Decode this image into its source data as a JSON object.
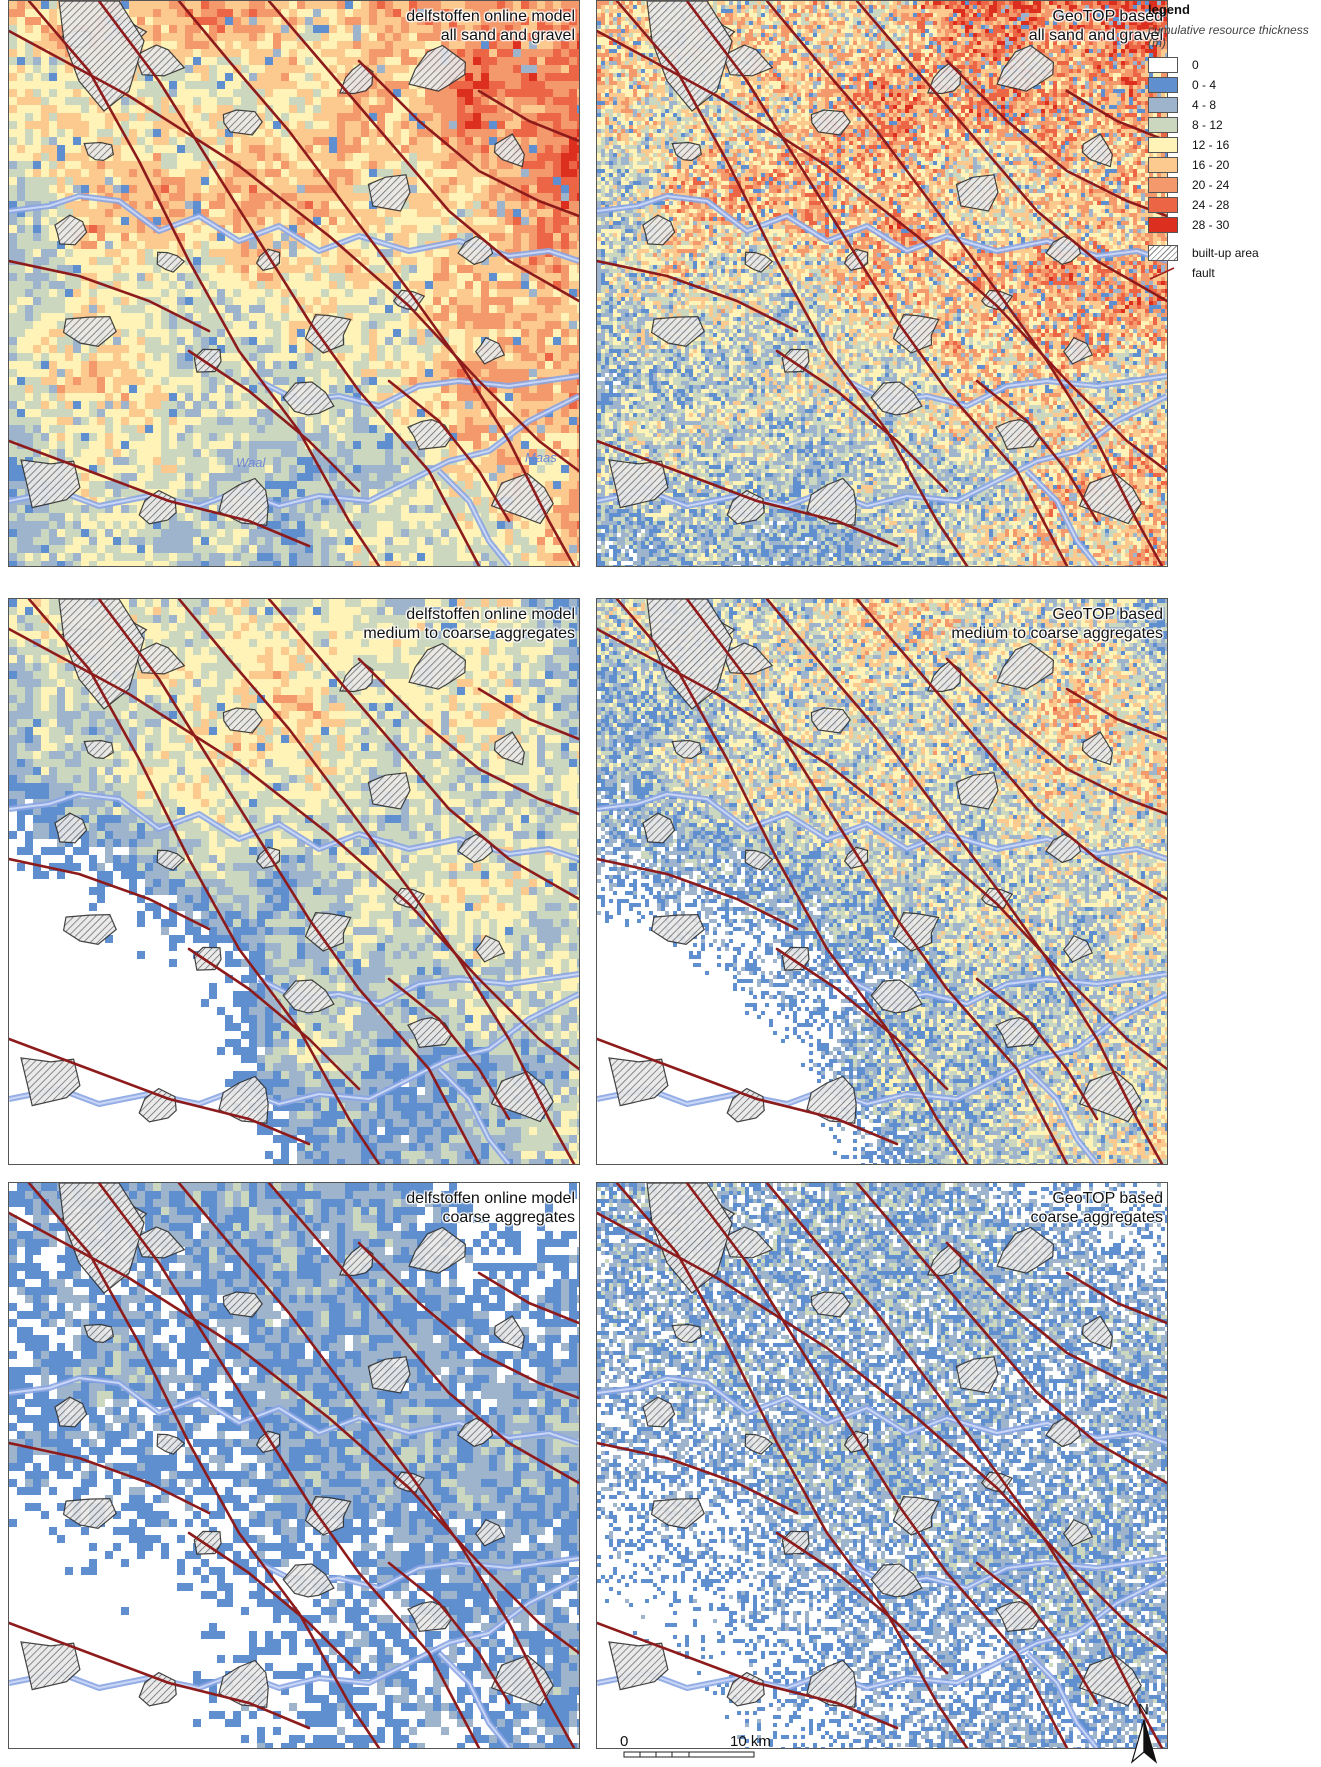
{
  "legend": {
    "title": "legend",
    "subtitle": "cumulative resource thickness (m)",
    "classes": [
      {
        "label": "0",
        "color": "#ffffff"
      },
      {
        "label": "0  -  4",
        "color": "#5f8fcf"
      },
      {
        "label": "4  -  8",
        "color": "#9eb4cc"
      },
      {
        "label": "8 - 12",
        "color": "#ccd7bf"
      },
      {
        "label": "12 - 16",
        "color": "#fff3b8"
      },
      {
        "label": "16 - 20",
        "color": "#fcc98e"
      },
      {
        "label": "20 - 24",
        "color": "#f4996c"
      },
      {
        "label": "24 - 28",
        "color": "#ec6646"
      },
      {
        "label": "28 - 30",
        "color": "#dd2f20"
      }
    ],
    "built_up": "built-up area",
    "fault": "fault"
  },
  "panels": [
    {
      "line1": "delfstoffen online model",
      "line2": "all sand and gravel"
    },
    {
      "line1": "GeoTOP based",
      "line2": "all sand and gravel"
    },
    {
      "line1": "delfstoffen online model",
      "line2": "medium to coarse aggregates"
    },
    {
      "line1": "GeoTOP based",
      "line2": "medium to coarse aggregates"
    },
    {
      "line1": "delfstoffen online model",
      "line2": "coarse aggregates"
    },
    {
      "line1": "GeoTOP based",
      "line2": "coarse aggregates"
    }
  ],
  "rivers": {
    "waal": "Waal",
    "maas": "Maas"
  },
  "scale": {
    "start": "0",
    "end": "10 km"
  },
  "north": "N"
}
